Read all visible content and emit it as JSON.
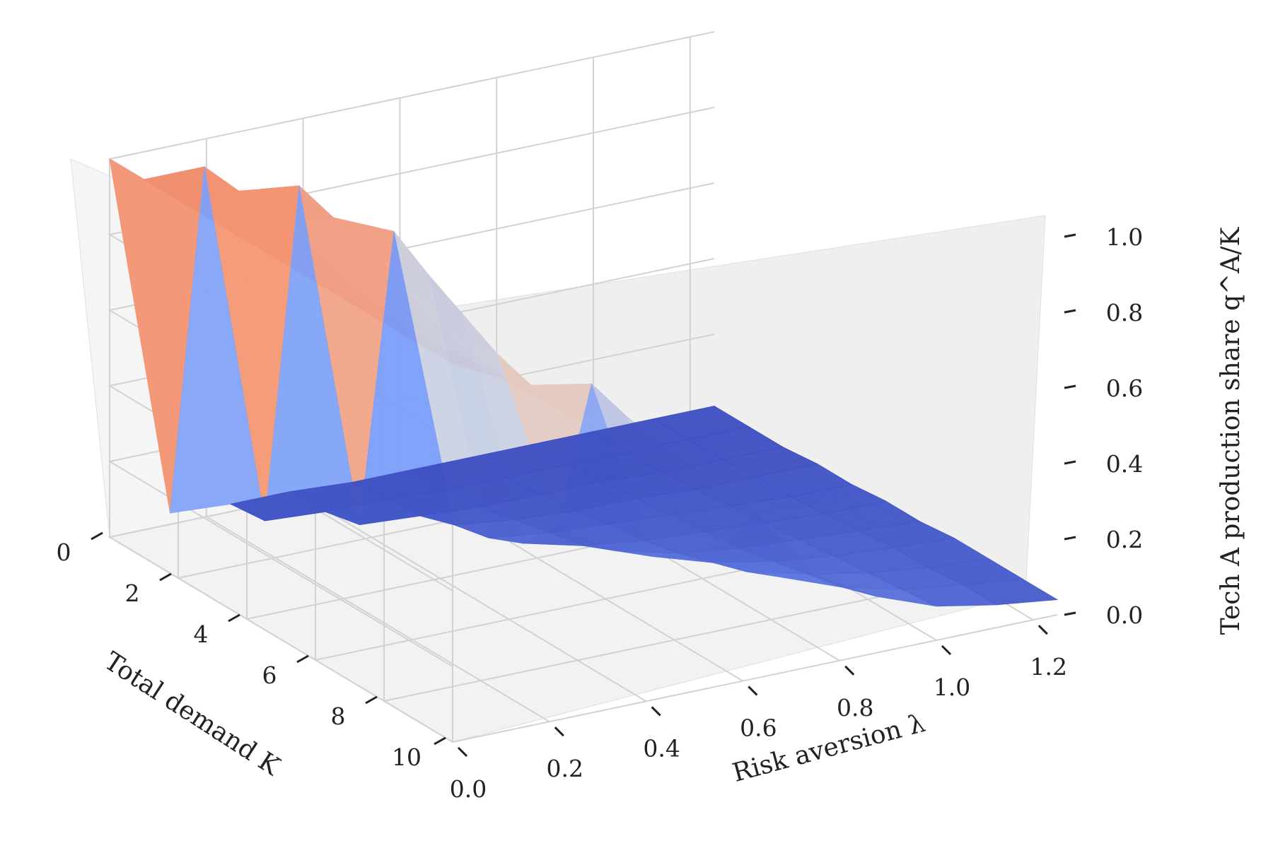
{
  "chart_data": {
    "type": "surface",
    "title": "",
    "xlabel": "Total demand K",
    "ylabel": "Risk aversion λ",
    "zlabel": "Tech A production share q^A/K",
    "x_ticks": [
      "0",
      "2",
      "4",
      "6",
      "8",
      "10"
    ],
    "y_ticks": [
      "0.0",
      "0.2",
      "0.4",
      "0.6",
      "0.8",
      "1.0",
      "1.2"
    ],
    "z_ticks": [
      "0.0",
      "0.2",
      "0.4",
      "0.6",
      "0.8",
      "1.0"
    ],
    "x_range": [
      0,
      10
    ],
    "y_range": [
      0,
      1.25
    ],
    "z_range": [
      0,
      1
    ],
    "colormap": "coolwarm",
    "grid": true,
    "x": [
      0,
      1,
      2,
      3,
      4,
      5,
      6,
      7,
      8,
      9,
      10
    ],
    "y": [
      0.0,
      0.125,
      0.25,
      0.375,
      0.5,
      0.625,
      0.75,
      0.875,
      1.0,
      1.125,
      1.25
    ],
    "z": [
      [
        1.0,
        1.0,
        1.0,
        1.0,
        1.0,
        1.0,
        1.0,
        1.0,
        1.0,
        1.0,
        1.0
      ],
      [
        0.03,
        1.0,
        0.99,
        0.97,
        0.95,
        0.93,
        0.91,
        0.9,
        0.9,
        0.91,
        0.92
      ],
      [
        0.02,
        0.03,
        0.97,
        0.94,
        0.9,
        0.86,
        0.82,
        0.8,
        0.79,
        0.79,
        0.8
      ],
      [
        0.02,
        0.02,
        0.04,
        0.87,
        0.81,
        0.76,
        0.71,
        0.68,
        0.66,
        0.66,
        0.66
      ],
      [
        0.01,
        0.02,
        0.03,
        0.06,
        0.08,
        0.12,
        0.22,
        0.65,
        0.62,
        0.6,
        0.6
      ],
      [
        0.01,
        0.01,
        0.02,
        0.04,
        0.06,
        0.08,
        0.12,
        0.16,
        0.22,
        0.3,
        0.44
      ],
      [
        0.01,
        0.01,
        0.02,
        0.03,
        0.05,
        0.06,
        0.08,
        0.11,
        0.14,
        0.18,
        0.24
      ],
      [
        0.01,
        0.01,
        0.02,
        0.03,
        0.04,
        0.05,
        0.06,
        0.08,
        0.1,
        0.12,
        0.15
      ],
      [
        0.01,
        0.01,
        0.01,
        0.02,
        0.03,
        0.04,
        0.05,
        0.06,
        0.07,
        0.08,
        0.09
      ],
      [
        0.01,
        0.01,
        0.01,
        0.02,
        0.02,
        0.03,
        0.04,
        0.05,
        0.05,
        0.06,
        0.06
      ],
      [
        0.01,
        0.01,
        0.01,
        0.02,
        0.02,
        0.03,
        0.03,
        0.04,
        0.04,
        0.04,
        0.04
      ]
    ]
  }
}
